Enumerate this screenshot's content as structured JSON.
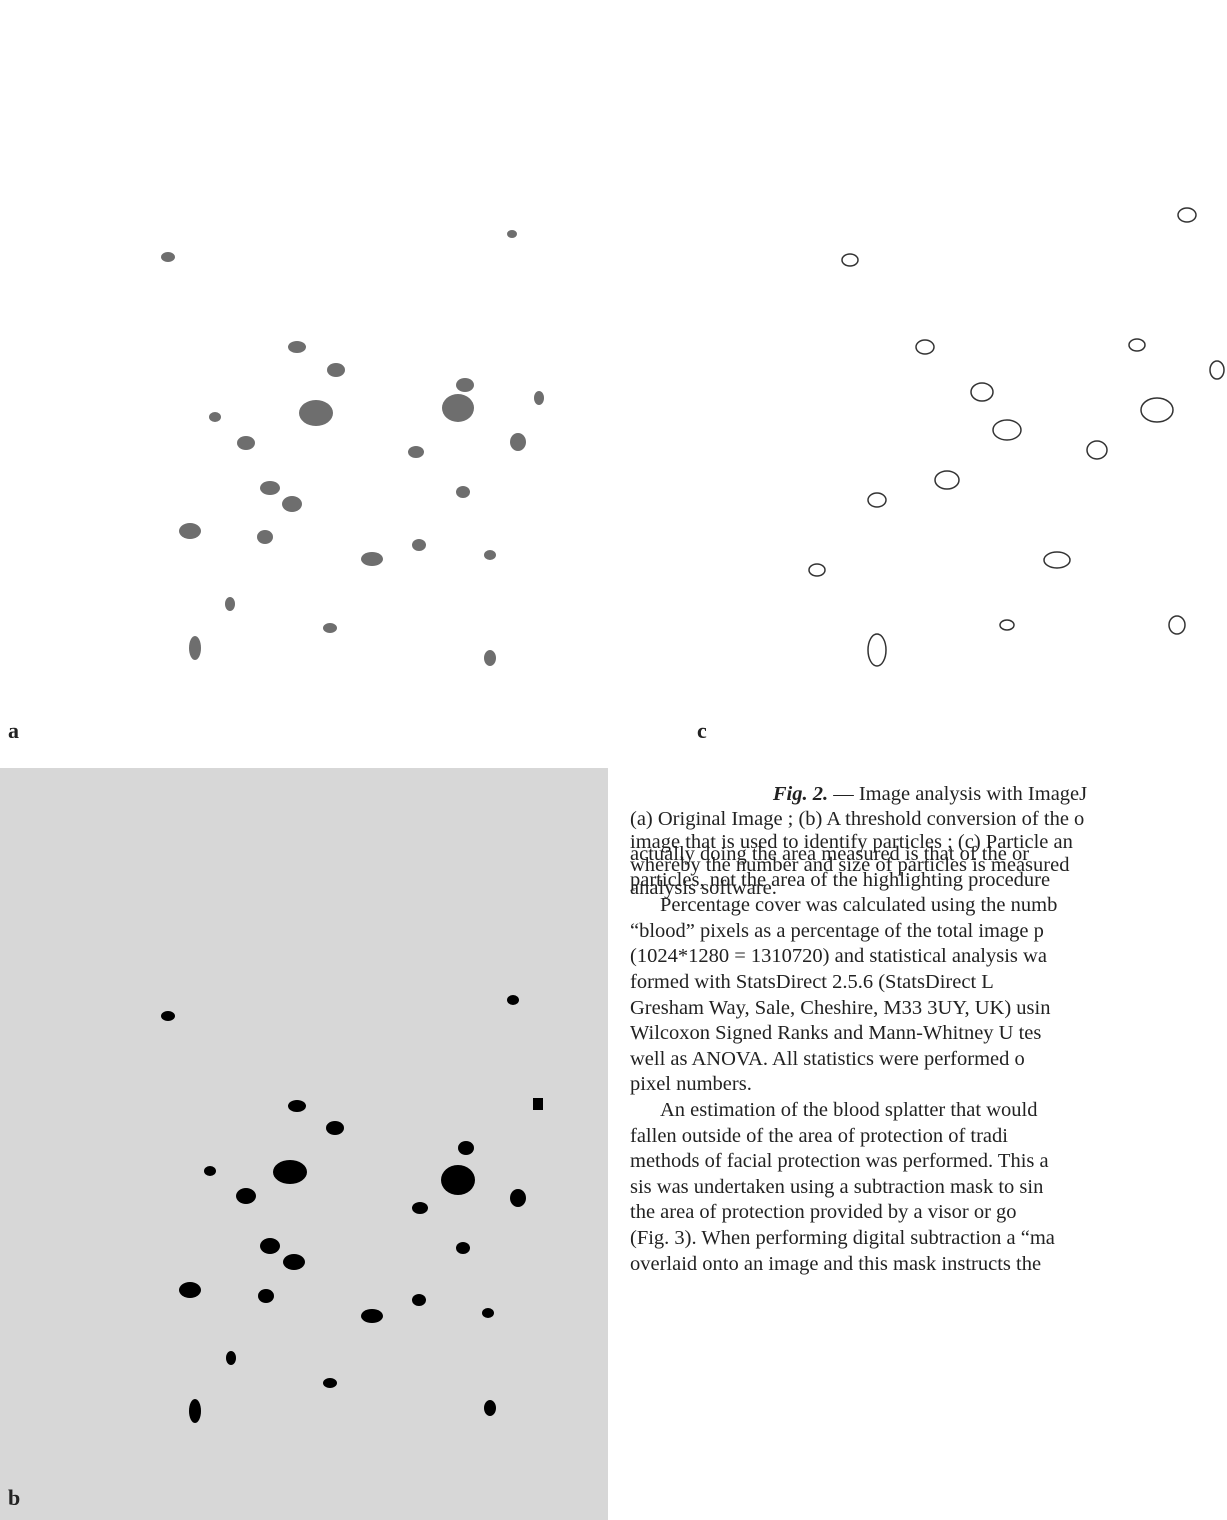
{
  "figure": {
    "panels": [
      "a",
      "b",
      "c"
    ],
    "caption": {
      "label": "Fig. 2.",
      "title": " — Image analysis with ImageJ",
      "lines": [
        "(a) Original Image ; (b) A threshold conversion of the o",
        "image that is used to identify particles ; (c) Particle an",
        "whereby the number and size of particles is measured",
        "analysis software."
      ]
    }
  },
  "body": {
    "paragraphs": [
      [
        "actually doing the area measured is that of the or",
        "particles, not the area of the highlighting procedure"
      ],
      [
        "Percentage cover was calculated using the numb",
        "“blood” pixels as a percentage of the total image p",
        "(1024*1280 = 1310720) and statistical analysis wa",
        "formed with StatsDirect 2.5.6 (StatsDirect L",
        "Gresham Way, Sale, Cheshire, M33 3UY, UK) usin",
        "Wilcoxon Signed Ranks and Mann-Whitney U tes",
        "well as ANOVA. All statistics were performed o",
        "pixel numbers."
      ],
      [
        "An estimation of the blood splatter that would",
        "fallen outside of the area of protection of tradi",
        "methods of facial protection was performed. This a",
        "sis was undertaken using a subtraction mask to sin",
        "the area of protection provided by a visor or go",
        "(Fig. 3). When performing digital subtraction a “ma",
        "overlaid onto an image and this mask instructs the"
      ]
    ]
  }
}
